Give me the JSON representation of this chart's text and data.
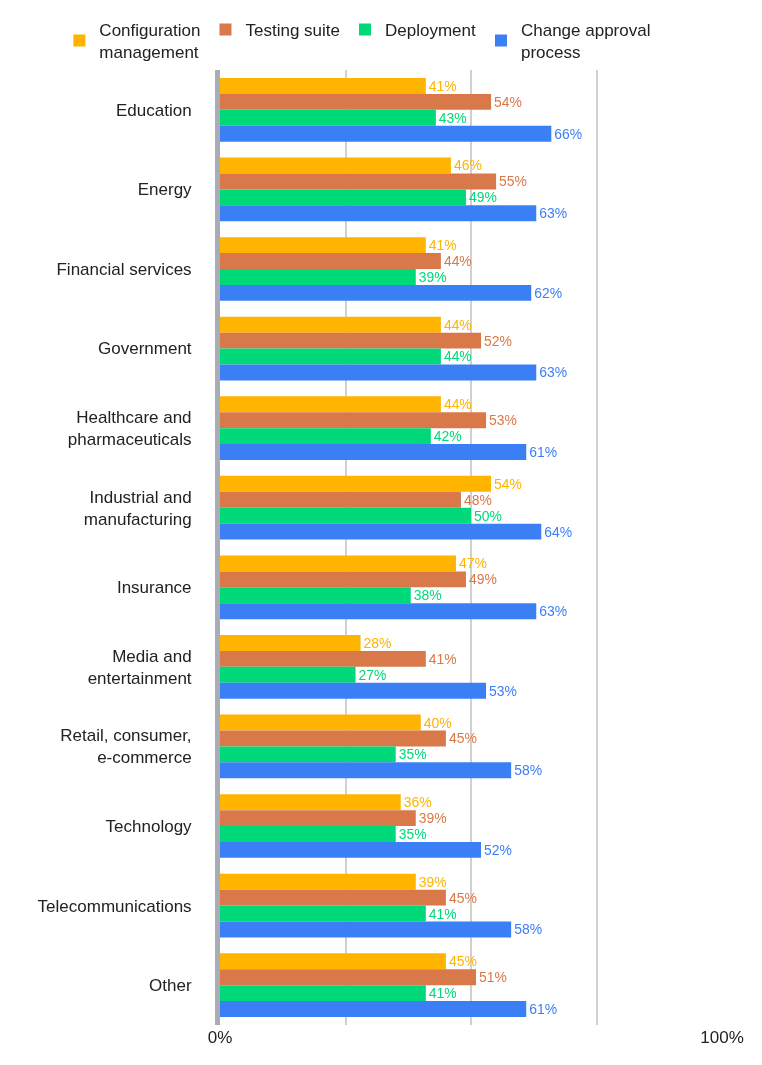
{
  "chart_data": {
    "type": "bar",
    "orientation": "horizontal",
    "categories": [
      "Education",
      "Energy",
      "Financial services",
      "Government",
      "Healthcare and pharmaceuticals",
      "Industrial and manufacturing",
      "Insurance",
      "Media and entertainment",
      "Retail, consumer, e-commerce",
      "Technology",
      "Telecommunications",
      "Other"
    ],
    "series": [
      {
        "name": "Configuration management",
        "color": "#ffb400",
        "values": [
          41,
          46,
          41,
          44,
          44,
          54,
          47,
          28,
          40,
          36,
          39,
          45
        ],
        "value_labels": [
          "41%",
          "46%",
          "41%",
          "44%",
          "44%",
          "54%",
          "47%",
          "28%",
          "40%",
          "36%",
          "39%",
          "45%"
        ]
      },
      {
        "name": "Testing suite",
        "color": "#d9794a",
        "values": [
          54,
          55,
          44,
          52,
          53,
          48,
          49,
          41,
          45,
          39,
          45,
          51
        ],
        "value_labels": [
          "54%",
          "55%",
          "44%",
          "52%",
          "53%",
          "48%",
          "49%",
          "41%",
          "45%",
          "39%",
          "45%",
          "51%"
        ]
      },
      {
        "name": "Deployment",
        "color": "#00d97a",
        "values": [
          43,
          49,
          39,
          44,
          42,
          50,
          38,
          27,
          35,
          35,
          41,
          41
        ],
        "value_labels": [
          "43%",
          "49%",
          "39%",
          "44%",
          "42%",
          "50%",
          "38%",
          "27%",
          "35%",
          "35%",
          "41%",
          "41%"
        ]
      },
      {
        "name": "Change approval process",
        "color": "#3b7ff5",
        "values": [
          66,
          63,
          62,
          63,
          61,
          64,
          63,
          53,
          58,
          52,
          58,
          61
        ],
        "value_labels": [
          "66%",
          "63%",
          "62%",
          "63%",
          "61%",
          "64%",
          "63%",
          "53%",
          "58%",
          "52%",
          "58%",
          "61%"
        ]
      }
    ],
    "xlim": [
      0,
      100
    ],
    "xticks": [
      {
        "value": 0,
        "label": "0%"
      },
      {
        "value": 25,
        "label": null
      },
      {
        "value": 50,
        "label": null
      },
      {
        "value": 75,
        "label": null
      },
      {
        "value": 100,
        "label": "100%"
      }
    ],
    "grid": "x",
    "legend": "top"
  }
}
